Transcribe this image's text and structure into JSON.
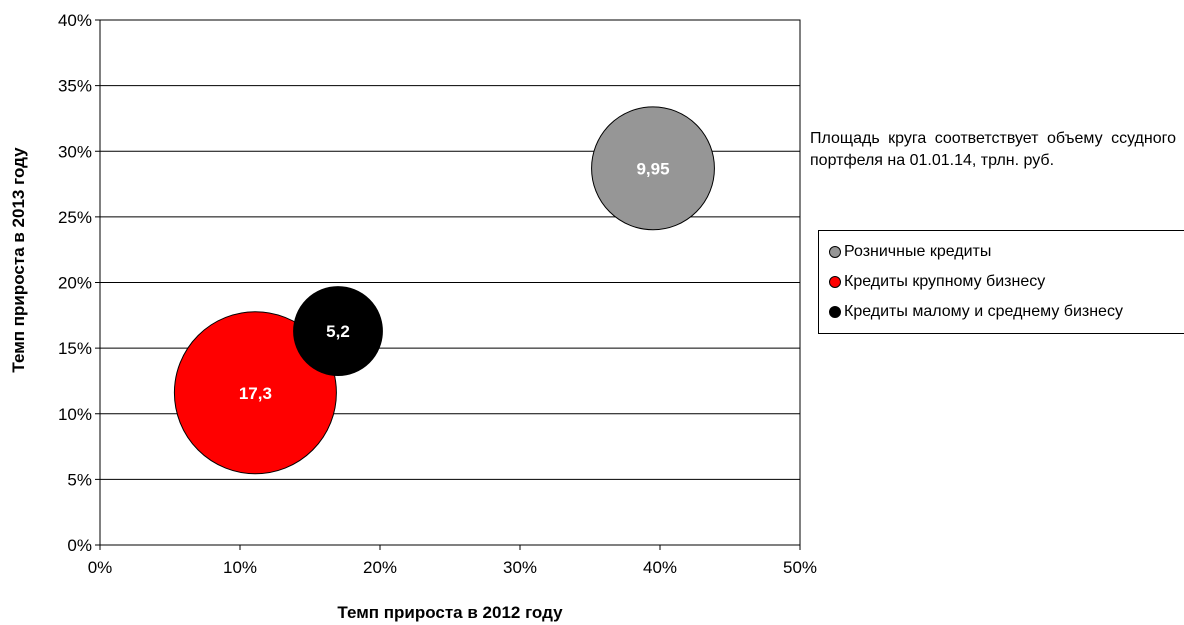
{
  "chart_data": {
    "type": "bubble",
    "xlabel": "Темп прироста в 2012 году",
    "ylabel": "Темп прироста в 2013 году",
    "xlim": [
      0,
      50
    ],
    "ylim": [
      0,
      40
    ],
    "x_ticks": [
      0,
      10,
      20,
      30,
      40,
      50
    ],
    "y_ticks": [
      0,
      5,
      10,
      15,
      20,
      25,
      30,
      35,
      40
    ],
    "x_tick_labels": [
      "0%",
      "10%",
      "20%",
      "30%",
      "40%",
      "50%"
    ],
    "y_tick_labels": [
      "0%",
      "5%",
      "10%",
      "15%",
      "20%",
      "25%",
      "30%",
      "35%",
      "40%"
    ],
    "grid": "horizontal",
    "legend_position": "right",
    "note": "Площадь круга соответствует объему ссудного портфеля на 01.01.14, трлн. руб.",
    "series": [
      {
        "name": "Розничные кредиты",
        "x": 39.5,
        "y": 28.7,
        "size": 9.95,
        "label": "9,95",
        "color": "#969696"
      },
      {
        "name": "Кредиты крупному бизнесу",
        "x": 11.1,
        "y": 11.6,
        "size": 17.3,
        "label": "17,3",
        "color": "#ff0000"
      },
      {
        "name": "Кредиты малому и среднему бизнесу",
        "x": 17.0,
        "y": 16.3,
        "size": 5.2,
        "label": "5,2",
        "color": "#000000"
      }
    ]
  }
}
